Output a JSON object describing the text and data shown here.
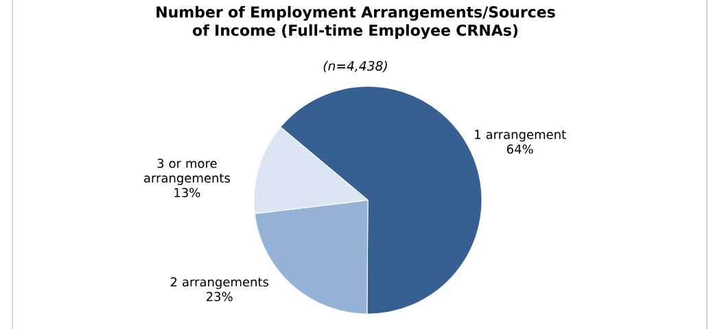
{
  "chart_data": {
    "type": "pie",
    "title": "Number of Employment Arrangements/Sources of Income (Full-time Employee CRNAs)",
    "subtitle": "(n=4,438)",
    "categories": [
      "1 arrangement",
      "2 arrangements",
      "3 or more arrangements"
    ],
    "values": [
      64,
      23,
      13
    ],
    "colors": [
      "#366092",
      "#95b3d7",
      "#dce6f2"
    ],
    "value_labels": [
      "64%",
      "23%",
      "13%"
    ],
    "legend": false
  }
}
